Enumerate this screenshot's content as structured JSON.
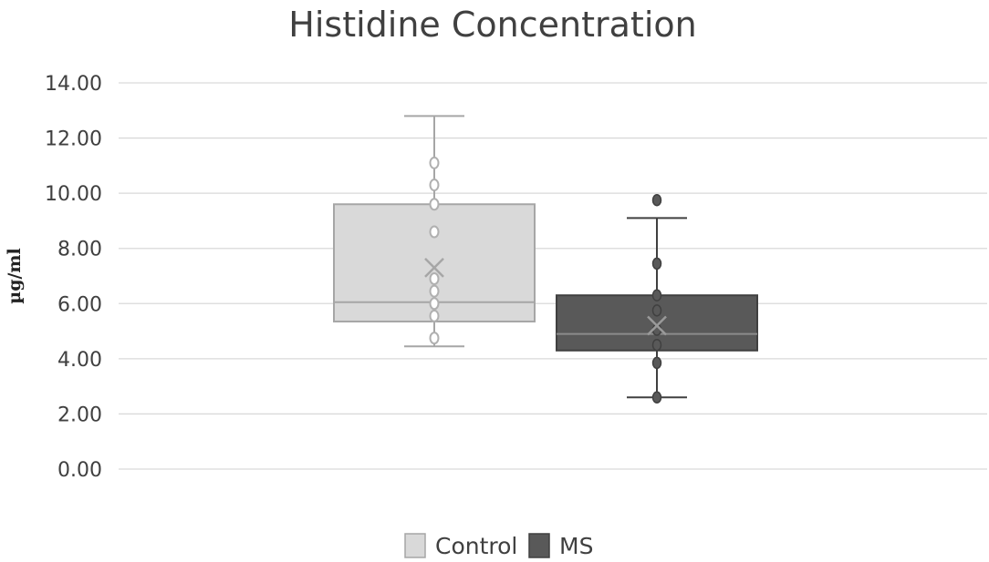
{
  "chart_data": {
    "type": "box",
    "title": "Histidine Concentration",
    "xlabel": "",
    "ylabel": "µg/ml",
    "ylim": [
      0,
      14
    ],
    "y_ticks": [
      "0.00",
      "2.00",
      "4.00",
      "6.00",
      "8.00",
      "10.00",
      "12.00",
      "14.00"
    ],
    "grid": true,
    "legend_position": "bottom",
    "series": [
      {
        "name": "Control",
        "color": "#d9d9d9",
        "edge_color": "#a6a6a6",
        "whisker_min": 4.45,
        "q1": 5.35,
        "median": 6.05,
        "q3": 9.6,
        "whisker_max": 12.8,
        "mean": 7.3,
        "points": [
          4.75,
          5.55,
          6.0,
          6.45,
          6.9,
          8.6,
          9.6,
          10.3,
          11.1
        ]
      },
      {
        "name": "MS",
        "color": "#595959",
        "edge_color": "#404040",
        "whisker_min": 2.6,
        "q1": 4.3,
        "median": 4.9,
        "q3": 6.3,
        "whisker_max": 9.1,
        "mean": 5.2,
        "points": [
          2.6,
          3.85,
          4.5,
          5.05,
          5.75,
          6.3,
          7.45,
          9.75
        ]
      }
    ]
  }
}
